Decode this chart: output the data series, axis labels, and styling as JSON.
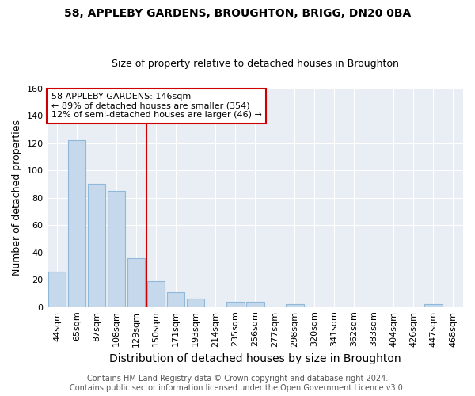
{
  "title": "58, APPLEBY GARDENS, BROUGHTON, BRIGG, DN20 0BA",
  "subtitle": "Size of property relative to detached houses in Broughton",
  "xlabel": "Distribution of detached houses by size in Broughton",
  "ylabel": "Number of detached properties",
  "categories": [
    "44sqm",
    "65sqm",
    "87sqm",
    "108sqm",
    "129sqm",
    "150sqm",
    "171sqm",
    "193sqm",
    "214sqm",
    "235sqm",
    "256sqm",
    "277sqm",
    "298sqm",
    "320sqm",
    "341sqm",
    "362sqm",
    "383sqm",
    "404sqm",
    "426sqm",
    "447sqm",
    "468sqm"
  ],
  "values": [
    26,
    122,
    90,
    85,
    36,
    19,
    11,
    6,
    0,
    4,
    4,
    0,
    2,
    0,
    0,
    0,
    0,
    0,
    0,
    2,
    0
  ],
  "bar_color": "#c5d8ec",
  "bar_edge_color": "#90b8d8",
  "vline_color": "#cc0000",
  "vline_x_index": 5,
  "annotation_text": "58 APPLEBY GARDENS: 146sqm\n← 89% of detached houses are smaller (354)\n12% of semi-detached houses are larger (46) →",
  "annotation_box_color": "#ffffff",
  "annotation_box_edge_color": "#cc0000",
  "ylim": [
    0,
    160
  ],
  "yticks": [
    0,
    20,
    40,
    60,
    80,
    100,
    120,
    140,
    160
  ],
  "footer": "Contains HM Land Registry data © Crown copyright and database right 2024.\nContains public sector information licensed under the Open Government Licence v3.0.",
  "background_color": "#ffffff",
  "plot_bg_color": "#e8eef4",
  "grid_color": "#ffffff",
  "title_fontsize": 10,
  "subtitle_fontsize": 9,
  "xlabel_fontsize": 10,
  "ylabel_fontsize": 9,
  "tick_fontsize": 8,
  "annotation_fontsize": 8,
  "footer_fontsize": 7
}
